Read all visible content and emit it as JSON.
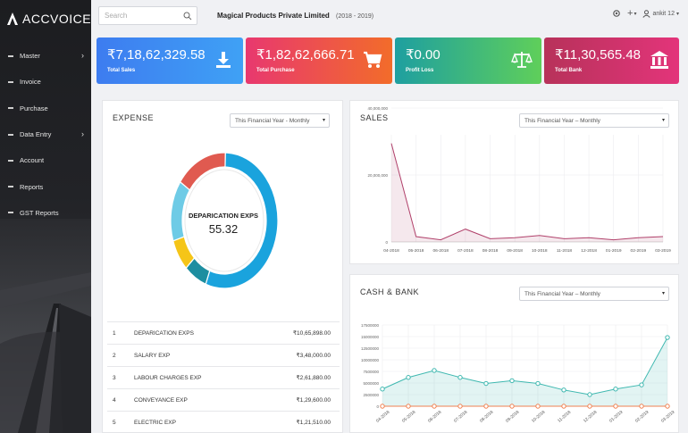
{
  "app": {
    "logo_text": "ACCVOICE",
    "logo_mark": "©"
  },
  "sidebar": {
    "items": [
      {
        "label": "Master",
        "has_children": true
      },
      {
        "label": "Invoice",
        "has_children": false
      },
      {
        "label": "Purchase",
        "has_children": false
      },
      {
        "label": "Data Entry",
        "has_children": true
      },
      {
        "label": "Account",
        "has_children": false
      },
      {
        "label": "Reports",
        "has_children": false
      },
      {
        "label": "GST Reports",
        "has_children": false
      }
    ]
  },
  "header": {
    "search_placeholder": "Search",
    "company": "Magical Products Private Limited",
    "year": "(2018 - 2019)",
    "user": "ankit 12"
  },
  "stats": [
    {
      "value": "₹7,18,62,329.58",
      "label": "Total Sales",
      "icon": "download-icon"
    },
    {
      "value": "₹1,82,62,666.71",
      "label": "Total Purchase",
      "icon": "cart-icon"
    },
    {
      "value": "₹0.00",
      "label": "Profit Loss",
      "icon": "scale-icon"
    },
    {
      "value": "₹11,30,565.48",
      "label": "Total Bank",
      "icon": "bank-icon"
    }
  ],
  "expense": {
    "title": "EXPENSE",
    "period": "This Financial Year - Monthly",
    "center_label": "DEPARICATION EXPS",
    "center_value": "55.32",
    "donut_segments": [
      {
        "name": "DEPARICATION EXPS",
        "value": 55.32,
        "color": "#1aa3dd"
      },
      {
        "name": "SALARY EXP",
        "value": 7.0,
        "color": "#1d8ea0"
      },
      {
        "name": "LABOUR CHARGES EXP",
        "value": 7.5,
        "color": "#f5c518"
      },
      {
        "name": "CONVEYANCE EXP",
        "value": 14.5,
        "color": "#6ecbe6"
      },
      {
        "name": "ELECTRIC EXP",
        "value": 15.68,
        "color": "#e05a50"
      }
    ],
    "rows": [
      {
        "num": "1",
        "name": "DEPARICATION EXPS",
        "amount": "₹10,65,898.00"
      },
      {
        "num": "2",
        "name": "SALARY EXP",
        "amount": "₹3,48,000.00"
      },
      {
        "num": "3",
        "name": "LABOUR CHARGES EXP",
        "amount": "₹2,61,880.00"
      },
      {
        "num": "4",
        "name": "CONVEYANCE EXP",
        "amount": "₹1,29,600.00"
      },
      {
        "num": "5",
        "name": "ELECTRIC EXP",
        "amount": "₹1,21,510.00"
      }
    ]
  },
  "sales": {
    "title": "SALES",
    "period": "This Financial Year – Monthly"
  },
  "cash": {
    "title": "CASH & BANK",
    "period": "This Financial Year – Monthly"
  },
  "chart_data": [
    {
      "type": "area",
      "title": "SALES",
      "categories": [
        "04-2018",
        "05-2018",
        "06-2018",
        "07-2018",
        "08-2018",
        "09-2018",
        "10-2018",
        "11-2018",
        "12-2018",
        "01-2019",
        "02-2019",
        "03-2019"
      ],
      "y_ticks": [
        "0",
        "20,000,000",
        "40,000,000"
      ],
      "series": [
        {
          "values": [
            46000000,
            2500000,
            1000000,
            6000000,
            1500000,
            2000000,
            3000000,
            1500000,
            2000000,
            1000000,
            2000000,
            2500000
          ],
          "color": "#b0406a"
        }
      ],
      "ylim": [
        0,
        50000000
      ]
    },
    {
      "type": "line",
      "title": "CASH & BANK",
      "categories": [
        "04-2018",
        "05-2018",
        "06-2018",
        "07-2018",
        "08-2018",
        "09-2018",
        "10-2018",
        "11-2018",
        "12-2018",
        "01-2019",
        "02-2019",
        "03-2019"
      ],
      "y_ticks": [
        "0",
        "2500000",
        "5000000",
        "7500000",
        "10000000",
        "12500000",
        "15000000",
        "17500000"
      ],
      "series": [
        {
          "values": [
            3700000,
            6200000,
            7700000,
            6200000,
            4900000,
            5500000,
            4900000,
            3500000,
            2500000,
            3700000,
            4600000,
            14800000
          ],
          "color": "#3fb8b0"
        },
        {
          "values": [
            0,
            0,
            0,
            0,
            0,
            0,
            0,
            0,
            0,
            0,
            0,
            0
          ],
          "color": "#f08050"
        }
      ],
      "ylim": [
        0,
        17500000
      ]
    }
  ]
}
